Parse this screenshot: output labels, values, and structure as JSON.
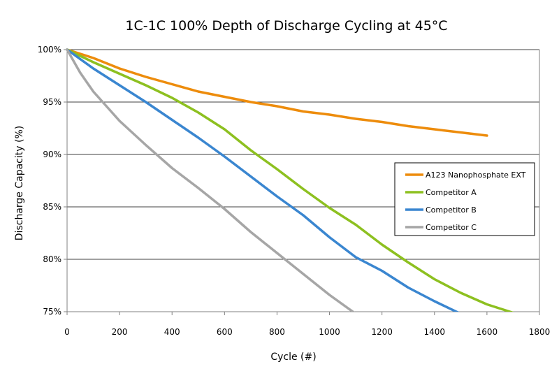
{
  "chart_data": {
    "type": "line",
    "title": "1C-1C 100% Depth of Discharge Cycling at 45°C",
    "xlabel": "Cycle (#)",
    "ylabel": "Discharge Capacity (%)",
    "xlim": [
      0,
      1800
    ],
    "ylim": [
      75,
      100
    ],
    "x_ticks": [
      0,
      200,
      400,
      600,
      800,
      1000,
      1200,
      1400,
      1600,
      1800
    ],
    "x_tick_labels": [
      "0",
      "200",
      "400",
      "600",
      "800",
      "1000",
      "1200",
      "1400",
      "1600",
      "1800"
    ],
    "y_ticks": [
      75,
      80,
      85,
      90,
      95,
      100
    ],
    "y_tick_labels": [
      "75%",
      "80%",
      "85%",
      "90%",
      "95%",
      "100%"
    ],
    "grid": true,
    "legend_position": "right-center",
    "series": [
      {
        "name": "A123 Nanophosphate EXT",
        "color": "#ED8C0C",
        "x": [
          0,
          100,
          200,
          300,
          400,
          500,
          600,
          700,
          800,
          900,
          1000,
          1100,
          1200,
          1300,
          1400,
          1500,
          1600
        ],
        "y": [
          100,
          99.2,
          98.2,
          97.4,
          96.7,
          96.0,
          95.5,
          95.0,
          94.6,
          94.1,
          93.8,
          93.4,
          93.1,
          92.7,
          92.4,
          92.1,
          91.8
        ]
      },
      {
        "name": "Competitor A",
        "color": "#8DC020",
        "x": [
          0,
          100,
          200,
          300,
          400,
          500,
          600,
          700,
          800,
          900,
          1000,
          1100,
          1200,
          1300,
          1400,
          1500,
          1600,
          1700
        ],
        "y": [
          100,
          98.8,
          97.7,
          96.6,
          95.4,
          94.0,
          92.4,
          90.4,
          88.6,
          86.7,
          84.9,
          83.3,
          81.4,
          79.7,
          78.1,
          76.8,
          75.7,
          74.9
        ]
      },
      {
        "name": "Competitor B",
        "color": "#3A86D0",
        "x": [
          0,
          100,
          200,
          300,
          400,
          500,
          600,
          700,
          800,
          900,
          1000,
          1100,
          1200,
          1300,
          1400,
          1500
        ],
        "y": [
          100,
          98.2,
          96.6,
          95.0,
          93.3,
          91.6,
          89.8,
          87.9,
          86.0,
          84.2,
          82.1,
          80.2,
          78.9,
          77.3,
          76.0,
          74.8
        ]
      },
      {
        "name": "Competitor C",
        "color": "#A6A6A6",
        "x": [
          0,
          50,
          100,
          200,
          300,
          400,
          500,
          600,
          700,
          800,
          900,
          1000,
          1100
        ],
        "y": [
          100,
          97.8,
          96.0,
          93.2,
          90.9,
          88.7,
          86.8,
          84.8,
          82.6,
          80.6,
          78.6,
          76.6,
          74.8
        ]
      }
    ]
  }
}
